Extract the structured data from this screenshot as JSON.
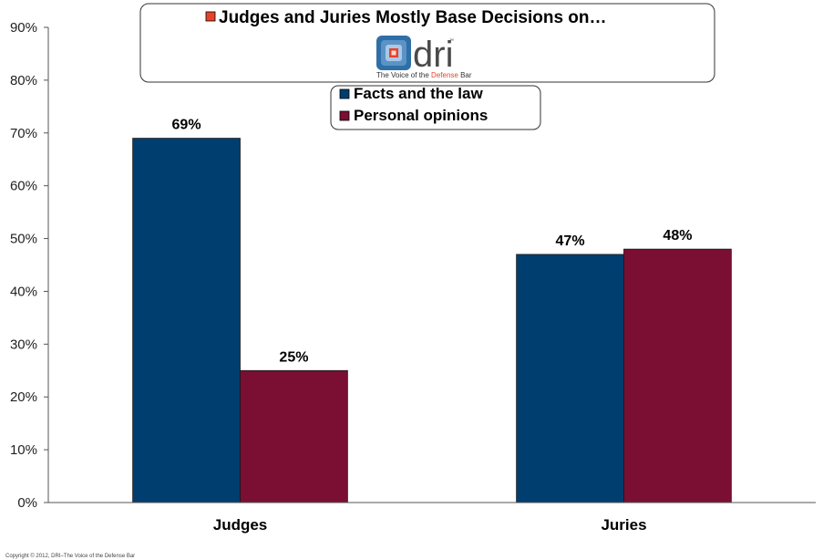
{
  "chart_data": {
    "type": "bar",
    "title": "Judges and Juries Mostly Base Decisions on…",
    "categories": [
      "Judges",
      "Juries"
    ],
    "series": [
      {
        "name": "Facts and the law",
        "values": [
          69,
          47
        ],
        "color": "#003e70"
      },
      {
        "name": "Personal opinions",
        "values": [
          25,
          48
        ],
        "color": "#7a0e33"
      }
    ],
    "data_labels": [
      [
        "69%",
        "47%"
      ],
      [
        "25%",
        "48%"
      ]
    ],
    "ylim": [
      0,
      90
    ],
    "yticks": [
      0,
      10,
      20,
      30,
      40,
      50,
      60,
      70,
      80,
      90
    ],
    "ytick_labels": [
      "0%",
      "10%",
      "20%",
      "30%",
      "40%",
      "50%",
      "60%",
      "70%",
      "80%",
      "90%"
    ],
    "xlabel": "",
    "ylabel": "",
    "grid": false,
    "legend_position": "top-center"
  },
  "colors": {
    "title_bullet": "#e8432a",
    "logo_blue": "#2f6fa8",
    "logo_accent": "#e8432a"
  },
  "logo": {
    "icon": "dri-logo-icon",
    "wordmark": "dri",
    "trademark": "™",
    "tagline_prefix": "The Voice of the ",
    "tagline_accent": "Defense",
    "tagline_suffix": " Bar"
  },
  "footer": {
    "copyright": "Copyright © 2012, DRI–The Voice of the Defense Bar"
  }
}
